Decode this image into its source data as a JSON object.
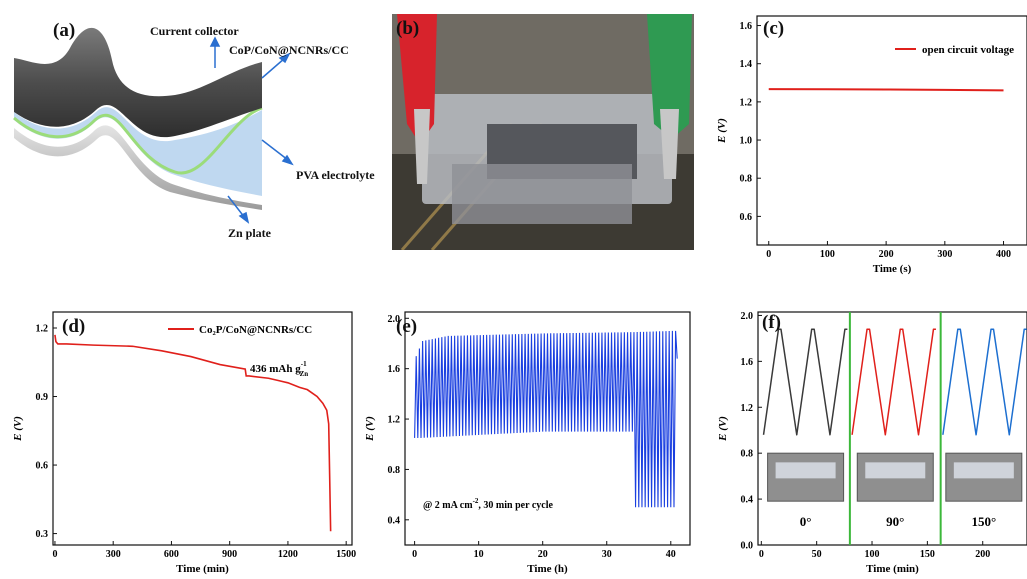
{
  "panel_labels": {
    "a": "(a)",
    "b": "(b)",
    "c": "(c)",
    "d": "(d)",
    "e": "(e)",
    "f": "(f)"
  },
  "schematic": {
    "labels": {
      "current_collector": "Current collector",
      "cathode": "CoP/CoN@NCNRs/CC",
      "electrolyte": "PVA electrolyte",
      "anode": "Zn plate"
    },
    "colors": {
      "collector": "#5a5a5a",
      "electrolyte": "#b8d4ee",
      "interface": "#9bdc7a",
      "zinc": "#c8c8c8"
    }
  },
  "photo_b": {
    "description_icon": "battery-photo"
  },
  "chart_data": [
    {
      "id": "c",
      "type": "line",
      "xlabel": "Time (s)",
      "ylabel": "E (V)",
      "xlim": [
        -20,
        440
      ],
      "ylim": [
        0.45,
        1.65
      ],
      "xticks": [
        0,
        100,
        200,
        300,
        400
      ],
      "yticks": [
        0.6,
        0.8,
        1.0,
        1.2,
        1.4,
        1.6
      ],
      "ytick_labels": [
        "0.6",
        "0.8",
        "1.0",
        "1.2",
        "1.4",
        "1.6"
      ],
      "legend": "top-right",
      "series": [
        {
          "name": "open circuit voltage",
          "color": "#e0201b",
          "x": [
            0,
            100,
            200,
            300,
            400
          ],
          "y": [
            1.267,
            1.266,
            1.265,
            1.263,
            1.26
          ]
        }
      ]
    },
    {
      "id": "d",
      "type": "line",
      "xlabel": "Time (min)",
      "ylabel": "E (V)",
      "xlim": [
        -10,
        1530
      ],
      "ylim": [
        0.25,
        1.27
      ],
      "xticks": [
        0,
        300,
        600,
        900,
        1200,
        1500
      ],
      "yticks": [
        0.3,
        0.6,
        0.9,
        1.2
      ],
      "ytick_labels": [
        "0.3",
        "0.6",
        "0.9",
        "1.2"
      ],
      "legend": "top-right",
      "annotation": {
        "text": "436 mAh g",
        "sup": "-1",
        "sub": "Zn"
      },
      "series": [
        {
          "name": "Co₂P/CoN@NCNRs/CC",
          "color": "#e0201b",
          "x": [
            0,
            5,
            15,
            60,
            200,
            400,
            550,
            700,
            850,
            980,
            985,
            1000,
            1100,
            1150,
            1200,
            1260,
            1300,
            1350,
            1380,
            1400,
            1410,
            1415,
            1420
          ],
          "y": [
            1.17,
            1.14,
            1.13,
            1.13,
            1.125,
            1.12,
            1.1,
            1.075,
            1.04,
            1.02,
            0.99,
            0.99,
            0.98,
            0.97,
            0.96,
            0.94,
            0.93,
            0.9,
            0.87,
            0.84,
            0.78,
            0.55,
            0.31
          ]
        }
      ]
    },
    {
      "id": "e",
      "type": "line",
      "xlabel": "Time (h)",
      "ylabel": "E (V)",
      "xlim": [
        -1.5,
        43
      ],
      "ylim": [
        0.2,
        2.05
      ],
      "xticks": [
        0,
        10,
        20,
        30,
        40
      ],
      "yticks": [
        0.4,
        0.8,
        1.2,
        1.6,
        2.0
      ],
      "ytick_labels": [
        "0.4",
        "0.8",
        "1.2",
        "1.6",
        "2.0"
      ],
      "annotation": {
        "text": "@ 2 mA cm",
        "sup": "-2",
        "tail": ", 30 min per cycle"
      },
      "series": [
        {
          "name": "",
          "color": "#1a3fe0",
          "cycle_h": 0.5,
          "duration_h": 41,
          "charge_V": [
            [
              0,
              1.7
            ],
            [
              1,
              1.82
            ],
            [
              5,
              1.86
            ],
            [
              20,
              1.88
            ],
            [
              34,
              1.89
            ],
            [
              40,
              1.9
            ]
          ],
          "discharge_V": [
            [
              0,
              1.05
            ],
            [
              1,
              1.05
            ],
            [
              20,
              1.1
            ],
            [
              34,
              1.1
            ],
            [
              34.3,
              0.5
            ],
            [
              41,
              0.5
            ]
          ]
        }
      ]
    },
    {
      "id": "f",
      "type": "line",
      "xlabel": "Time (min)",
      "ylabel": "E (V)",
      "xlim": [
        -3,
        240
      ],
      "ylim": [
        0.0,
        2.03
      ],
      "xticks": [
        0,
        50,
        100,
        150,
        200
      ],
      "yticks": [
        0.0,
        0.4,
        0.8,
        1.2,
        1.6,
        2.0
      ],
      "ytick_labels": [
        "0.0",
        "0.4",
        "0.8",
        "1.2",
        "1.6",
        "2.0"
      ],
      "dividers_x": [
        80,
        162
      ],
      "divider_color": "#3cb83a",
      "segments": [
        {
          "label": "0°",
          "color": "#3a3a3a",
          "x_start": 0,
          "x_end": 80
        },
        {
          "label": "90°",
          "color": "#e0201b",
          "x_start": 80,
          "x_end": 162
        },
        {
          "label": "150°",
          "color": "#1d6fd0",
          "x_start": 162,
          "x_end": 240
        }
      ],
      "cycle_min": 30,
      "high_V": 1.88,
      "low_V": 0.96
    }
  ]
}
